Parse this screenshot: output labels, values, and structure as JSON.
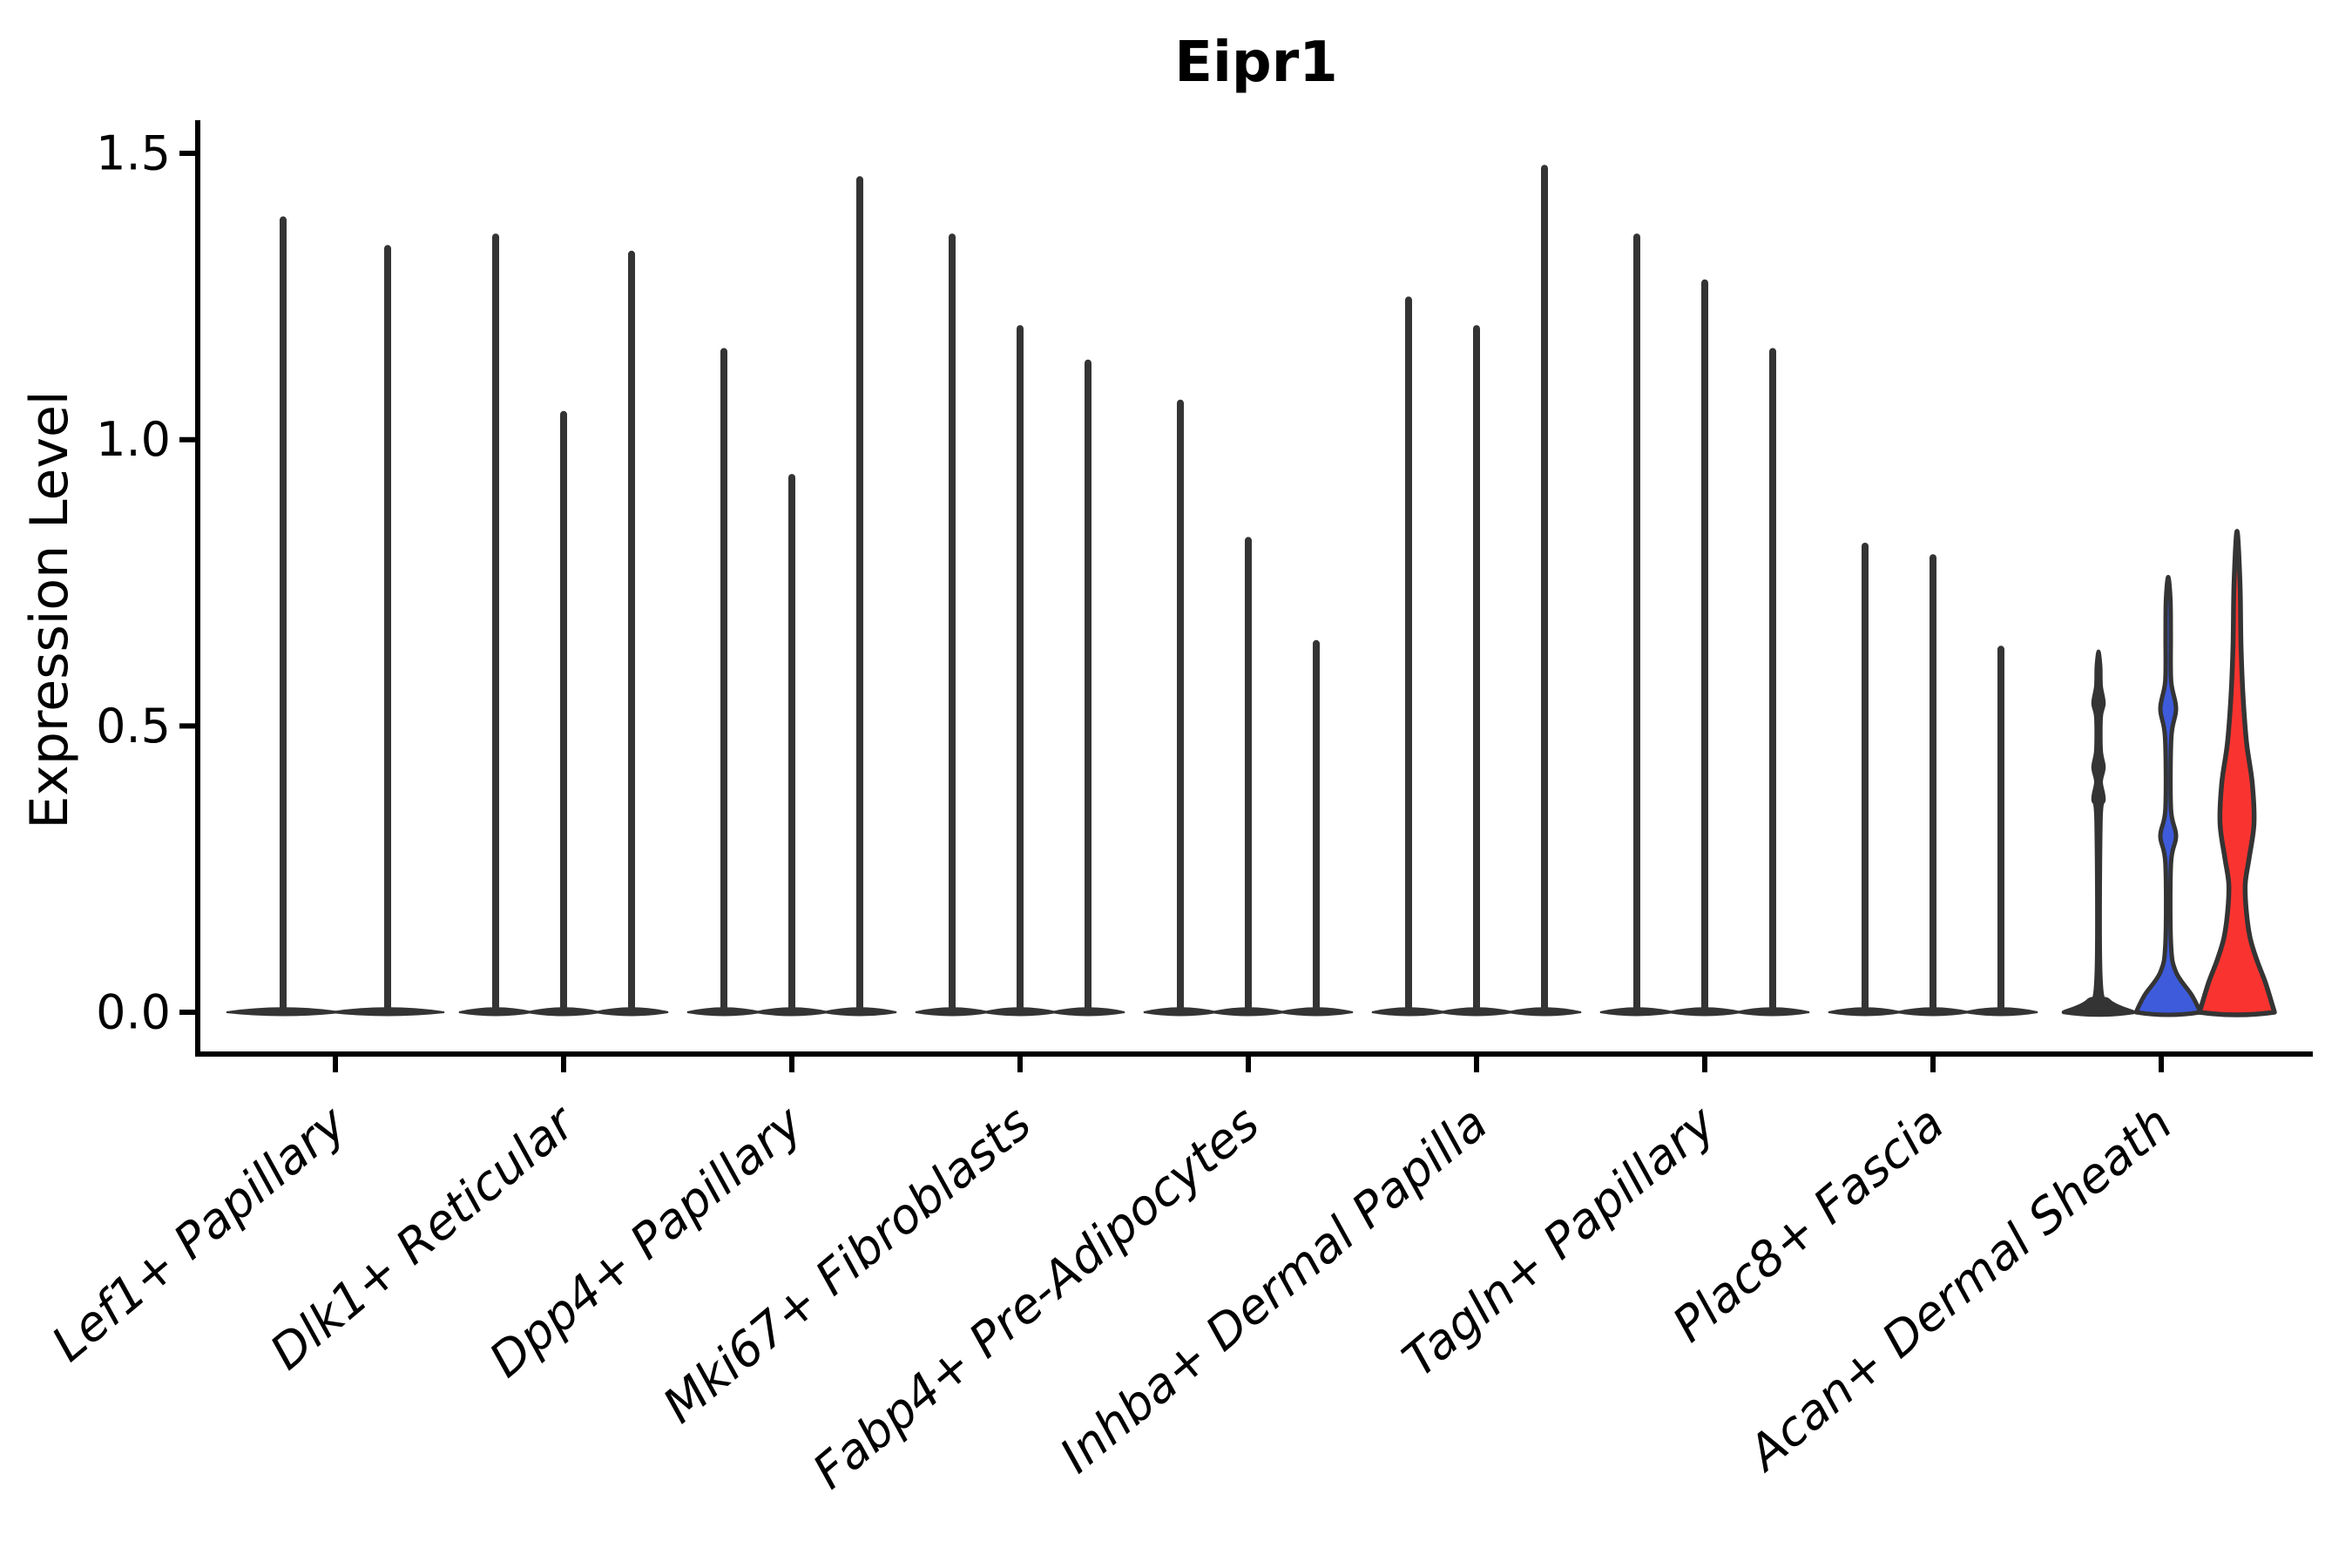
{
  "chart_data": {
    "type": "violin",
    "title": "Eipr1",
    "ylabel": "Expression Level",
    "xlabel": "",
    "ylim": [
      0,
      1.56
    ],
    "yticks": [
      0,
      0.5,
      1.0,
      1.5
    ],
    "ytick_labels": [
      "0.0",
      "0.5",
      "1.0",
      "1.5"
    ],
    "grid": false,
    "legend": "none",
    "background_color": "#ffffff",
    "axis_color": "#000000",
    "violin_outline_color": "#343434",
    "highlight_colors": {
      "blue": "#3D5BDB",
      "red": "#F93430"
    },
    "categories": [
      "Lef1+ Papillary",
      "Dlk1+ Reticular",
      "Dpp4+ Papillary",
      "Mki67+ Fibroblasts",
      "Fabp4+ Pre-Adipocytes",
      "Inhba+ Dermal Papilla",
      "Tagln+ Papillary",
      "Plac8+ Fascia",
      "Acan+ Dermal Sheath"
    ],
    "description": "Grouped violin plot of Eipr1 expression. Nearly all violins collapse to a flat base at 0 with a thin vertical tail reaching the max expression value; the last group contains one dark, one blue-filled and one red-filled violin.",
    "groups": [
      {
        "category": "Lef1+ Papillary",
        "violins": [
          {
            "kind": "spike",
            "offset": -60,
            "max": 1.39,
            "base_halfwidth": 65,
            "color": "#343434"
          },
          {
            "kind": "spike",
            "offset": 60,
            "max": 1.34,
            "base_halfwidth": 65,
            "color": "#343434"
          }
        ]
      },
      {
        "category": "Dlk1+ Reticular",
        "violins": [
          {
            "kind": "spike",
            "offset": -78,
            "max": 1.36,
            "base_halfwidth": 42,
            "color": "#343434"
          },
          {
            "kind": "spike",
            "offset": 0,
            "max": 1.05,
            "base_halfwidth": 42,
            "color": "#343434"
          },
          {
            "kind": "spike",
            "offset": 78,
            "max": 1.33,
            "base_halfwidth": 42,
            "color": "#343434"
          }
        ]
      },
      {
        "category": "Dpp4+ Papillary",
        "violins": [
          {
            "kind": "spike",
            "offset": -78,
            "max": 1.16,
            "base_halfwidth": 42,
            "color": "#343434"
          },
          {
            "kind": "spike",
            "offset": 0,
            "max": 0.94,
            "base_halfwidth": 42,
            "color": "#343434"
          },
          {
            "kind": "spike",
            "offset": 78,
            "max": 1.46,
            "base_halfwidth": 42,
            "color": "#343434"
          }
        ]
      },
      {
        "category": "Mki67+ Fibroblasts",
        "violins": [
          {
            "kind": "spike",
            "offset": -78,
            "max": 1.36,
            "base_halfwidth": 42,
            "color": "#343434"
          },
          {
            "kind": "spike",
            "offset": 0,
            "max": 1.2,
            "base_halfwidth": 42,
            "color": "#343434"
          },
          {
            "kind": "spike",
            "offset": 78,
            "max": 1.14,
            "base_halfwidth": 42,
            "color": "#343434"
          }
        ]
      },
      {
        "category": "Fabp4+ Pre-Adipocytes",
        "violins": [
          {
            "kind": "spike",
            "offset": -78,
            "max": 1.07,
            "base_halfwidth": 42,
            "color": "#343434"
          },
          {
            "kind": "spike",
            "offset": 0,
            "max": 0.83,
            "base_halfwidth": 42,
            "color": "#343434"
          },
          {
            "kind": "spike",
            "offset": 78,
            "max": 0.65,
            "base_halfwidth": 42,
            "color": "#343434"
          }
        ]
      },
      {
        "category": "Inhba+ Dermal Papilla",
        "violins": [
          {
            "kind": "spike",
            "offset": -78,
            "max": 1.25,
            "base_halfwidth": 42,
            "color": "#343434"
          },
          {
            "kind": "spike",
            "offset": 0,
            "max": 1.2,
            "base_halfwidth": 42,
            "color": "#343434"
          },
          {
            "kind": "spike",
            "offset": 78,
            "max": 1.48,
            "base_halfwidth": 42,
            "color": "#343434"
          }
        ]
      },
      {
        "category": "Tagln+ Papillary",
        "violins": [
          {
            "kind": "spike",
            "offset": -78,
            "max": 1.36,
            "base_halfwidth": 42,
            "color": "#343434"
          },
          {
            "kind": "spike",
            "offset": 0,
            "max": 1.28,
            "base_halfwidth": 42,
            "color": "#343434"
          },
          {
            "kind": "spike",
            "offset": 78,
            "max": 1.16,
            "base_halfwidth": 42,
            "color": "#343434"
          }
        ]
      },
      {
        "category": "Plac8+ Fascia",
        "violins": [
          {
            "kind": "spike",
            "offset": -78,
            "max": 0.82,
            "base_halfwidth": 42,
            "color": "#343434"
          },
          {
            "kind": "spike",
            "offset": 0,
            "max": 0.8,
            "base_halfwidth": 42,
            "color": "#343434"
          },
          {
            "kind": "spike",
            "offset": 78,
            "max": 0.64,
            "base_halfwidth": 42,
            "color": "#343434"
          }
        ]
      },
      {
        "category": "Acan+ Dermal Sheath",
        "violins": [
          {
            "kind": "profile",
            "offset": -72,
            "max": 0.63,
            "color": "#343434",
            "stroke_width": 4.5,
            "profile": [
              [
                0,
                40
              ],
              [
                0.02,
                12
              ],
              [
                0.06,
                2.5
              ],
              [
                0.33,
                2.5
              ],
              [
                0.372,
                6
              ],
              [
                0.402,
                2.8
              ],
              [
                0.428,
                6
              ],
              [
                0.458,
                2.8
              ],
              [
                0.515,
                2.8
              ],
              [
                0.54,
                6
              ],
              [
                0.57,
                2.8
              ],
              [
                0.605,
                2.2
              ],
              [
                0.63,
                0
              ]
            ]
          },
          {
            "kind": "profile",
            "offset": 8,
            "max": 0.76,
            "color": "#3D5BDB",
            "stroke_width": 5,
            "profile": [
              [
                0,
                37
              ],
              [
                0.03,
                27
              ],
              [
                0.07,
                9
              ],
              [
                0.12,
                3.2
              ],
              [
                0.26,
                3.2
              ],
              [
                0.308,
                9
              ],
              [
                0.355,
                3.2
              ],
              [
                0.48,
                3.6
              ],
              [
                0.53,
                9
              ],
              [
                0.578,
                3.4
              ],
              [
                0.655,
                3
              ],
              [
                0.72,
                2.6
              ],
              [
                0.76,
                0
              ]
            ]
          },
          {
            "kind": "profile",
            "offset": 87,
            "max": 0.84,
            "color": "#F93430",
            "stroke_width": 5.5,
            "profile": [
              [
                0,
                43
              ],
              [
                0.05,
                33
              ],
              [
                0.09,
                23
              ],
              [
                0.13,
                15
              ],
              [
                0.18,
                10.5
              ],
              [
                0.225,
                9.5
              ],
              [
                0.27,
                14
              ],
              [
                0.33,
                19.5
              ],
              [
                0.4,
                17.5
              ],
              [
                0.47,
                11
              ],
              [
                0.55,
                7
              ],
              [
                0.64,
                4.6
              ],
              [
                0.75,
                3.4
              ],
              [
                0.84,
                0
              ]
            ]
          }
        ]
      }
    ]
  }
}
